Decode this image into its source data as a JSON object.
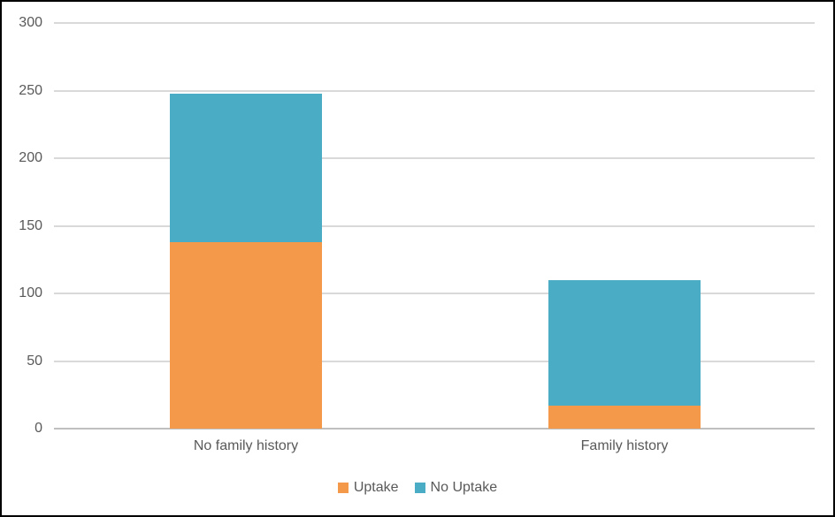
{
  "figure": {
    "background": "#ffffff",
    "border_color": "#000000",
    "text_color": "#595959",
    "gridline_color": "#D9D9D9",
    "axis_line_color": "#BFBFBF"
  },
  "chart_data": {
    "type": "bar",
    "stacked": true,
    "title": "",
    "xlabel": "",
    "ylabel": "",
    "categories": [
      "No family history",
      "Family history"
    ],
    "series": [
      {
        "name": "Uptake",
        "color": "#F49849",
        "values": [
          138,
          17
        ]
      },
      {
        "name": "No Uptake",
        "color": "#4BACC5",
        "values": [
          110,
          93
        ]
      }
    ],
    "totals": [
      248,
      110
    ],
    "ylim": [
      0,
      300
    ],
    "yticks": [
      0,
      50,
      100,
      150,
      200,
      250,
      300
    ],
    "grid": true,
    "legend_position": "bottom"
  }
}
